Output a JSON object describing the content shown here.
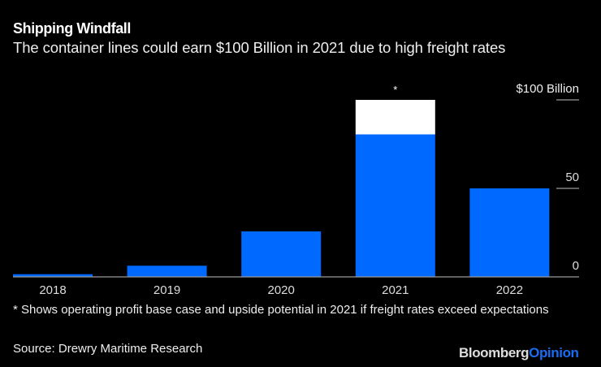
{
  "header": {
    "title": "Shipping Windfall",
    "subtitle": "The container lines could earn $100 Billion in 2021 due to high freight rates"
  },
  "colors": {
    "base": "#0069ff",
    "upside": "#ffffff",
    "gridline": "#9a9a9a",
    "background": "#000000",
    "brand_opinion": "#1a6cf0"
  },
  "chart_data": {
    "type": "bar",
    "stacked": true,
    "title": "Shipping Windfall",
    "subtitle": "The container lines could earn $100 Billion in 2021 due to high freight rates",
    "xlabel": "",
    "ylabel": "",
    "unit_label": "$100 Billion",
    "categories": [
      "2018",
      "2019",
      "2020",
      "2021",
      "2022"
    ],
    "series": [
      {
        "name": "Operating profit base case",
        "color": "#0069ff",
        "values": [
          1.5,
          6.3,
          25.7,
          80.5,
          50
        ]
      },
      {
        "name": "Upside potential",
        "color": "#ffffff",
        "values": [
          0,
          0,
          0,
          19.5,
          0
        ]
      }
    ],
    "ylim": [
      0,
      100
    ],
    "yticks": [
      {
        "value": 100,
        "label": "$100 Billion"
      },
      {
        "value": 50,
        "label": "50"
      },
      {
        "value": 0,
        "label": "0"
      }
    ],
    "annotations": [
      {
        "category": "2021",
        "text": "*"
      }
    ],
    "grid": true,
    "legend": "none",
    "y_axis_position": "right"
  },
  "footer": {
    "footnote": "* Shows operating profit base case and upside potential in 2021 if freight rates exceed expectations",
    "source": "Source: Drewry Maritime Research",
    "logo_part1": "Bloomberg",
    "logo_part2": "Opinion"
  }
}
